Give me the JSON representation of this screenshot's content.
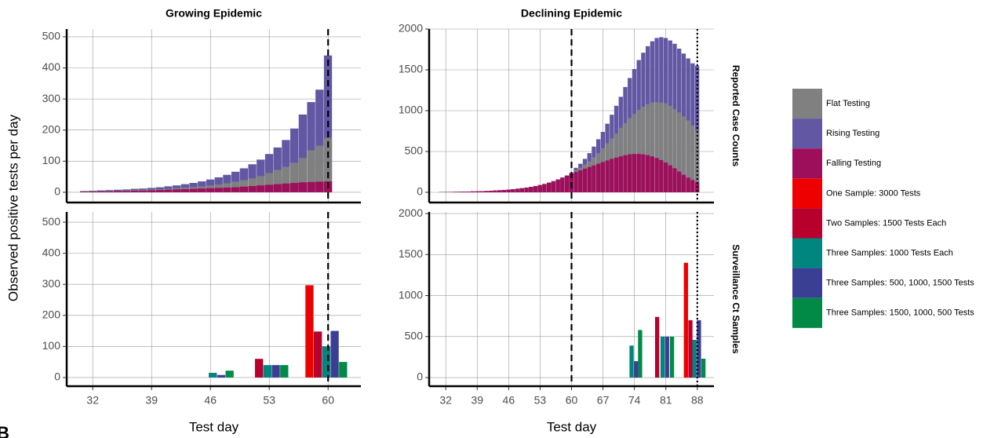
{
  "panel_label": "B",
  "chart_data": [
    {
      "type": "bar",
      "title": "Growing Epidemic",
      "y_label": "Observed positive tests per day",
      "x": [
        31,
        32,
        33,
        34,
        35,
        36,
        37,
        38,
        39,
        40,
        41,
        42,
        43,
        44,
        45,
        46,
        47,
        48,
        49,
        50,
        51,
        52,
        53,
        54,
        55,
        56,
        57,
        58,
        59,
        60
      ],
      "xlim": [
        28.9,
        63.9
      ],
      "xticks": [
        32,
        39,
        46,
        53,
        60
      ],
      "ylim": [
        -33,
        525
      ],
      "yticks": [
        0,
        100,
        200,
        300,
        400,
        500
      ],
      "grid": true,
      "vlines": [
        {
          "x": 60,
          "style": "dashed"
        }
      ],
      "series": [
        {
          "name": "Flat Testing",
          "color": "#808080",
          "values": [
            3,
            4,
            4,
            5,
            5,
            6,
            7,
            8,
            9,
            10,
            11,
            13,
            15,
            17,
            19,
            22,
            25,
            29,
            34,
            39,
            45,
            52,
            62,
            72,
            82,
            95,
            110,
            135,
            150,
            175
          ]
        },
        {
          "name": "Rising Testing",
          "color": "#6157a3",
          "values": [
            4,
            5,
            6,
            7,
            8,
            9,
            11,
            12,
            14,
            16,
            19,
            22,
            26,
            30,
            35,
            41,
            48,
            56,
            66,
            77,
            90,
            105,
            123,
            144,
            168,
            205,
            250,
            290,
            330,
            440
          ]
        },
        {
          "name": "Falling Testing",
          "color": "#9e0f5b",
          "values": [
            2,
            2,
            3,
            3,
            4,
            4,
            5,
            5,
            6,
            7,
            8,
            9,
            10,
            11,
            12,
            13,
            14,
            15,
            16,
            18,
            20,
            22,
            24,
            26,
            28,
            30,
            32,
            33,
            34,
            35
          ]
        }
      ]
    },
    {
      "type": "bar",
      "title": "Declining Epidemic",
      "strip": "Reported Case Counts",
      "x": [
        31,
        32,
        33,
        34,
        35,
        36,
        37,
        38,
        39,
        40,
        41,
        42,
        43,
        44,
        45,
        46,
        47,
        48,
        49,
        50,
        51,
        52,
        53,
        54,
        55,
        56,
        57,
        58,
        59,
        60,
        61,
        62,
        63,
        64,
        65,
        66,
        67,
        68,
        69,
        70,
        71,
        72,
        73,
        74,
        75,
        76,
        77,
        78,
        79,
        80,
        81,
        82,
        83,
        84,
        85,
        86,
        87,
        88
      ],
      "xlim": [
        28.3,
        91.7
      ],
      "xticks": [
        32,
        39,
        46,
        53,
        60,
        67,
        74,
        81,
        88
      ],
      "ylim": [
        -125,
        2000
      ],
      "yticks": [
        0,
        500,
        1000,
        1500,
        2000
      ],
      "grid": true,
      "vlines": [
        {
          "x": 60,
          "style": "dashed"
        },
        {
          "x": 88,
          "style": "dotted"
        }
      ],
      "series": [
        {
          "name": "Flat Testing",
          "color": "#808080",
          "values": [
            3,
            4,
            5,
            6,
            7,
            8,
            9,
            11,
            12,
            14,
            16,
            19,
            22,
            25,
            29,
            33,
            38,
            44,
            50,
            58,
            67,
            77,
            89,
            102,
            118,
            136,
            157,
            180,
            205,
            235,
            270,
            300,
            340,
            380,
            430,
            480,
            540,
            600,
            660,
            720,
            790,
            850,
            910,
            960,
            1010,
            1050,
            1080,
            1100,
            1105,
            1100,
            1090,
            1060,
            1020,
            980,
            930,
            880,
            820,
            760
          ]
        },
        {
          "name": "Rising Testing",
          "color": "#6157a3",
          "values": [
            3,
            4,
            5,
            6,
            7,
            8,
            9,
            11,
            12,
            14,
            16,
            19,
            22,
            25,
            29,
            33,
            38,
            44,
            50,
            58,
            67,
            77,
            89,
            102,
            118,
            136,
            157,
            180,
            205,
            235,
            300,
            350,
            410,
            480,
            560,
            650,
            740,
            840,
            950,
            1060,
            1170,
            1290,
            1400,
            1510,
            1620,
            1710,
            1790,
            1850,
            1890,
            1900,
            1890,
            1860,
            1820,
            1760,
            1700,
            1640,
            1580,
            1550
          ]
        },
        {
          "name": "Falling Testing",
          "color": "#9e0f5b",
          "values": [
            3,
            4,
            5,
            6,
            7,
            8,
            9,
            11,
            12,
            14,
            16,
            19,
            22,
            25,
            29,
            33,
            38,
            44,
            50,
            58,
            67,
            77,
            89,
            102,
            118,
            136,
            157,
            180,
            205,
            235,
            250,
            270,
            290,
            310,
            330,
            350,
            370,
            390,
            410,
            425,
            440,
            455,
            465,
            470,
            470,
            465,
            455,
            440,
            420,
            395,
            365,
            330,
            295,
            255,
            215,
            180,
            150,
            120
          ]
        }
      ]
    },
    {
      "type": "bar",
      "x_label": "Test day",
      "xlim": [
        28.9,
        63.9
      ],
      "xticks": [
        32,
        39,
        46,
        53,
        60
      ],
      "ylim": [
        -28,
        533
      ],
      "yticks": [
        0,
        100,
        200,
        300,
        400,
        500
      ],
      "grid": true,
      "vlines": [
        {
          "x": 60,
          "style": "dashed"
        }
      ],
      "series": [
        {
          "name": "One Sample: 3000 Tests",
          "color": "#ee0000",
          "x": [
            57.8
          ],
          "values": [
            297
          ]
        },
        {
          "name": "Two Samples: 1500 Tests Each",
          "color": "#b7002b",
          "x": [
            51.8,
            58.8
          ],
          "values": [
            60,
            148
          ]
        },
        {
          "name": "Three Samples: 1000 Tests Each",
          "color": "#00857f",
          "x": [
            46.3,
            52.8,
            59.8
          ],
          "values": [
            15,
            40,
            100
          ]
        },
        {
          "name": "Three Samples: 500, 1000, 1500 Tests",
          "color": "#3a3f94",
          "x": [
            47.3,
            53.8,
            60.8
          ],
          "values": [
            8,
            40,
            150
          ]
        },
        {
          "name": "Three Samples: 1500, 1000, 500 Tests",
          "color": "#008a46",
          "x": [
            48.3,
            54.8,
            61.8
          ],
          "values": [
            22,
            40,
            50
          ]
        }
      ]
    },
    {
      "type": "bar",
      "x_label": "Test day",
      "strip": "Surveillance Ct Samples",
      "xlim": [
        28.3,
        91.7
      ],
      "xticks": [
        32,
        39,
        46,
        53,
        60,
        67,
        74,
        81,
        88
      ],
      "ylim": [
        -105,
        2020
      ],
      "yticks": [
        0,
        500,
        1000,
        1500,
        2000
      ],
      "grid": true,
      "vlines": [
        {
          "x": 60,
          "style": "dashed"
        },
        {
          "x": 88,
          "style": "dotted"
        }
      ],
      "series": [
        {
          "name": "One Sample: 3000 Tests",
          "color": "#ee0000",
          "x": [
            85.5
          ],
          "values": [
            1400
          ]
        },
        {
          "name": "Two Samples: 1500 Tests Each",
          "color": "#b7002b",
          "x": [
            79.1,
            86.5
          ],
          "values": [
            740,
            700
          ]
        },
        {
          "name": "Three Samples: 1000 Tests Each",
          "color": "#00857f",
          "x": [
            73.4,
            80.3,
            87.4
          ],
          "values": [
            390,
            500,
            460
          ]
        },
        {
          "name": "Three Samples: 500, 1000, 1500 Tests",
          "color": "#3a3f94",
          "x": [
            74.4,
            81.3,
            88.4
          ],
          "values": [
            200,
            500,
            700
          ]
        },
        {
          "name": "Three Samples: 1500, 1000, 500 Tests",
          "color": "#008a46",
          "x": [
            75.3,
            82.4,
            89.4
          ],
          "values": [
            580,
            500,
            230
          ]
        }
      ]
    }
  ]
}
